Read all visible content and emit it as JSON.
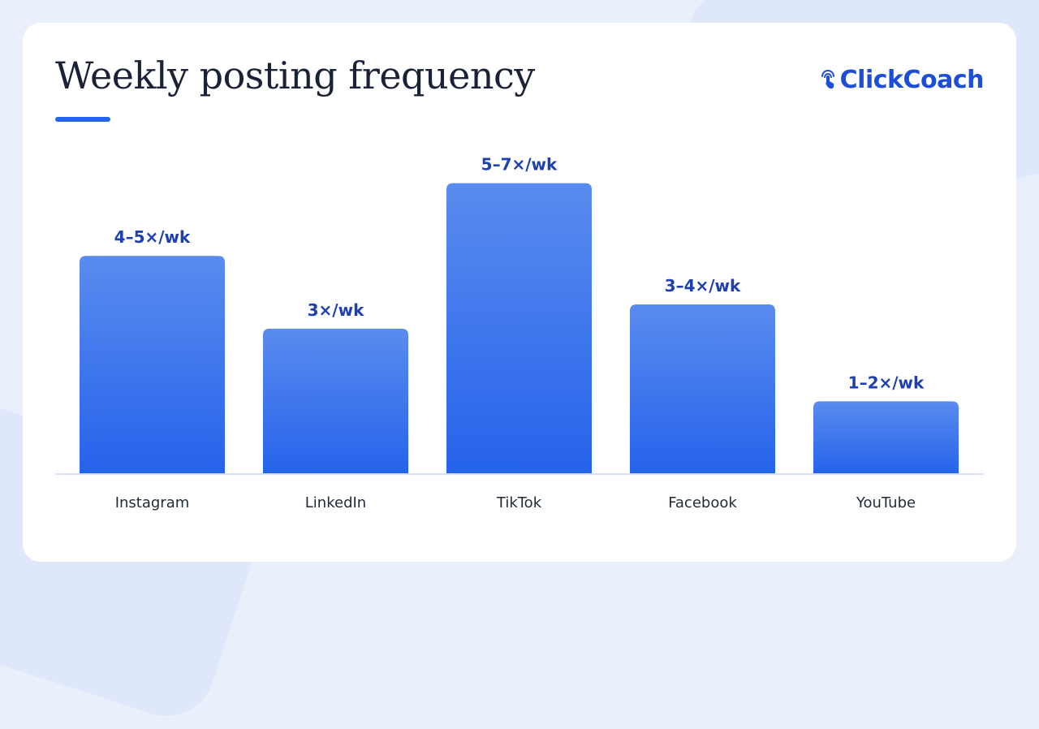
{
  "brand": {
    "name": "ClickCoach",
    "icon": "tap-icon",
    "color": "#1d4ed8"
  },
  "colors": {
    "accent": "#2563eb",
    "bar_top": "#5a8bee",
    "bar_bottom": "#2563eb",
    "label": "#1e40af"
  },
  "chart_data": {
    "type": "bar",
    "title": "Weekly posting frequency",
    "categories": [
      "Instagram",
      "LinkedIn",
      "TikTok",
      "Facebook",
      "YouTube"
    ],
    "values": [
      4.5,
      3,
      6,
      3.5,
      1.5
    ],
    "value_labels": [
      "4–5×/wk",
      "3×/wk",
      "5–7×/wk",
      "3–4×/wk",
      "1–2×/wk"
    ],
    "ylim": [
      0,
      7.3
    ],
    "xlabel": "",
    "ylabel": "",
    "grid": false,
    "legend": "none"
  }
}
